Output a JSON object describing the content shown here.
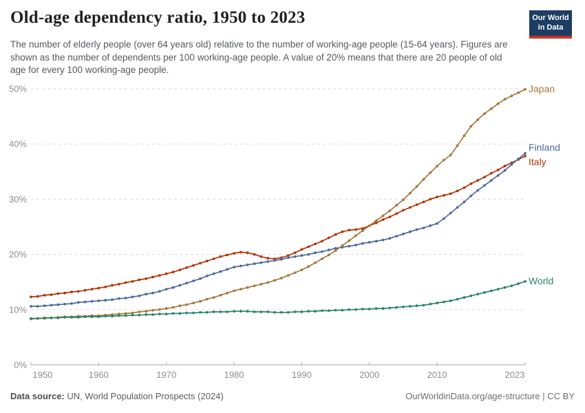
{
  "header": {
    "title": "Old-age dependency ratio, 1950 to 2023",
    "subtitle": "The number of elderly people (over 64 years old) relative to the number of working-age people (15-64 years). Figures are shown as the number of dependents per 100 working-age people. A value of 20% means that there are 20 people of old age for every 100 working-age people.",
    "logo": {
      "line1": "Our World",
      "line2": "in Data",
      "bg_color": "#1d3d63",
      "accent_color": "#cf3123"
    }
  },
  "chart_data": {
    "type": "line",
    "title": "Old-age dependency ratio, 1950 to 2023",
    "xlabel": "",
    "ylabel": "",
    "xlim": [
      1950,
      2023
    ],
    "ylim": [
      0,
      50
    ],
    "grid": "horizontal-dashed",
    "legend_position": "end-of-line-labels",
    "y_ticks": [
      0,
      10,
      20,
      30,
      40,
      50
    ],
    "y_tick_suffix": "%",
    "x_ticks": [
      1950,
      1960,
      1970,
      1980,
      1990,
      2000,
      2010,
      2023
    ],
    "x": [
      1950,
      1951,
      1952,
      1953,
      1954,
      1955,
      1956,
      1957,
      1958,
      1959,
      1960,
      1961,
      1962,
      1963,
      1964,
      1965,
      1966,
      1967,
      1968,
      1969,
      1970,
      1971,
      1972,
      1973,
      1974,
      1975,
      1976,
      1977,
      1978,
      1979,
      1980,
      1981,
      1982,
      1983,
      1984,
      1985,
      1986,
      1987,
      1988,
      1989,
      1990,
      1991,
      1992,
      1993,
      1994,
      1995,
      1996,
      1997,
      1998,
      1999,
      2000,
      2001,
      2002,
      2003,
      2004,
      2005,
      2006,
      2007,
      2008,
      2009,
      2010,
      2011,
      2012,
      2013,
      2014,
      2015,
      2016,
      2017,
      2018,
      2019,
      2020,
      2021,
      2022,
      2023
    ],
    "series": [
      {
        "name": "Japan",
        "color": "#a2793d",
        "values": [
          8.3,
          8.4,
          8.4,
          8.5,
          8.6,
          8.7,
          8.7,
          8.8,
          8.8,
          8.9,
          8.9,
          9.0,
          9.1,
          9.2,
          9.3,
          9.4,
          9.6,
          9.7,
          9.9,
          10.0,
          10.2,
          10.4,
          10.7,
          10.9,
          11.2,
          11.5,
          11.9,
          12.2,
          12.6,
          13.0,
          13.4,
          13.7,
          14.0,
          14.3,
          14.6,
          14.9,
          15.3,
          15.7,
          16.2,
          16.7,
          17.2,
          17.8,
          18.5,
          19.2,
          19.9,
          20.7,
          21.6,
          22.5,
          23.4,
          24.3,
          25.2,
          26.1,
          27.0,
          27.9,
          28.9,
          29.9,
          31.1,
          32.3,
          33.6,
          34.8,
          36.0,
          37.1,
          38.0,
          39.7,
          41.5,
          43.2,
          44.4,
          45.5,
          46.4,
          47.3,
          48.1,
          48.7,
          49.3,
          49.9
        ]
      },
      {
        "name": "Finland",
        "color": "#4c6a9c",
        "values": [
          10.6,
          10.6,
          10.7,
          10.8,
          10.9,
          11.0,
          11.1,
          11.3,
          11.4,
          11.5,
          11.6,
          11.7,
          11.8,
          12.0,
          12.1,
          12.3,
          12.5,
          12.8,
          13.0,
          13.3,
          13.7,
          14.0,
          14.4,
          14.8,
          15.2,
          15.6,
          16.1,
          16.5,
          16.9,
          17.3,
          17.7,
          17.9,
          18.1,
          18.3,
          18.5,
          18.7,
          18.9,
          19.1,
          19.4,
          19.6,
          19.8,
          20.0,
          20.3,
          20.5,
          20.8,
          21.1,
          21.3,
          21.5,
          21.7,
          22.0,
          22.2,
          22.4,
          22.6,
          22.9,
          23.3,
          23.7,
          24.1,
          24.5,
          24.8,
          25.2,
          25.6,
          26.5,
          27.5,
          28.5,
          29.5,
          30.6,
          31.6,
          32.5,
          33.4,
          34.3,
          35.2,
          36.3,
          37.3,
          38.3
        ]
      },
      {
        "name": "Italy",
        "color": "#b13507",
        "values": [
          12.3,
          12.4,
          12.6,
          12.7,
          12.9,
          13.0,
          13.2,
          13.3,
          13.5,
          13.7,
          13.9,
          14.1,
          14.4,
          14.6,
          14.9,
          15.1,
          15.4,
          15.6,
          15.9,
          16.2,
          16.5,
          16.8,
          17.2,
          17.6,
          18.0,
          18.4,
          18.8,
          19.2,
          19.6,
          19.9,
          20.2,
          20.4,
          20.3,
          20.0,
          19.6,
          19.3,
          19.2,
          19.4,
          19.8,
          20.3,
          20.9,
          21.4,
          21.9,
          22.4,
          23.0,
          23.6,
          24.1,
          24.4,
          24.5,
          24.7,
          25.2,
          25.7,
          26.3,
          26.8,
          27.4,
          28.0,
          28.5,
          29.0,
          29.5,
          30.0,
          30.4,
          30.7,
          31.0,
          31.5,
          32.1,
          32.8,
          33.4,
          34.0,
          34.7,
          35.3,
          36.0,
          36.6,
          37.2,
          37.8
        ]
      },
      {
        "name": "World",
        "color": "#2c8465",
        "values": [
          8.4,
          8.4,
          8.5,
          8.5,
          8.5,
          8.6,
          8.6,
          8.6,
          8.7,
          8.7,
          8.7,
          8.8,
          8.8,
          8.9,
          8.9,
          9.0,
          9.0,
          9.1,
          9.1,
          9.2,
          9.2,
          9.3,
          9.3,
          9.4,
          9.4,
          9.5,
          9.5,
          9.6,
          9.6,
          9.6,
          9.7,
          9.7,
          9.7,
          9.6,
          9.6,
          9.6,
          9.5,
          9.5,
          9.5,
          9.6,
          9.6,
          9.7,
          9.7,
          9.8,
          9.8,
          9.9,
          9.9,
          10.0,
          10.0,
          10.1,
          10.1,
          10.2,
          10.2,
          10.3,
          10.4,
          10.5,
          10.6,
          10.7,
          10.8,
          11.0,
          11.2,
          11.4,
          11.6,
          11.9,
          12.2,
          12.5,
          12.8,
          13.1,
          13.4,
          13.7,
          14.0,
          14.3,
          14.7,
          15.1
        ]
      }
    ],
    "style": {
      "gridline_color": "#dadada",
      "axis_color": "#a5a5a5",
      "tick_label_color": "#8d8d8d"
    }
  },
  "footer": {
    "source_label": "Data source:",
    "source_text": " UN, World Population Prospects (2024)",
    "link_text": "OurWorldinData.org/age-structure | CC BY"
  }
}
